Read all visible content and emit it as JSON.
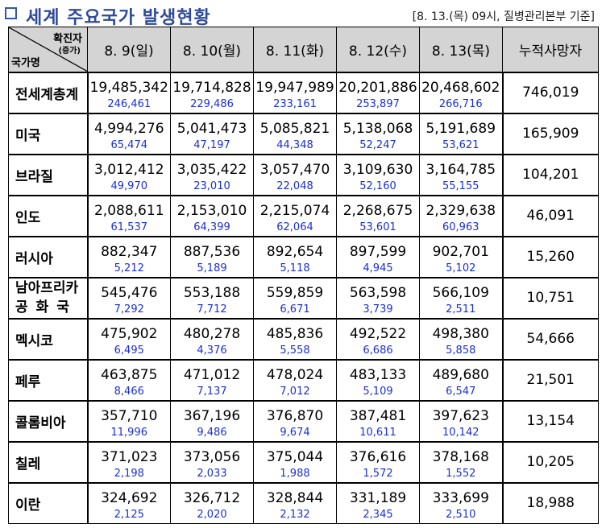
{
  "header": {
    "title": "세계 주요국가 발생현황",
    "note": "[8. 13.(목) 09시, 질병관리본부 기준]",
    "corner_top": "확진자",
    "corner_sub": "(증가)",
    "corner_bottom": "국가명",
    "dates": [
      "8. 9(일)",
      "8. 10(월)",
      "8. 11(화)",
      "8. 12(수)",
      "8. 13(목)"
    ],
    "deaths_label": "누적사망자"
  },
  "rows": [
    {
      "name": "전세계총계",
      "spread": false,
      "cases": [
        "19,485,342",
        "19,714,828",
        "19,947,989",
        "20,201,886",
        "20,468,602"
      ],
      "increase": [
        "246,461",
        "229,486",
        "233,161",
        "253,897",
        "266,716"
      ],
      "deaths": "746,019"
    },
    {
      "name": "미국",
      "spread": true,
      "cases": [
        "4,994,276",
        "5,041,473",
        "5,085,821",
        "5,138,068",
        "5,191,689"
      ],
      "increase": [
        "65,474",
        "47,197",
        "44,348",
        "52,247",
        "53,621"
      ],
      "deaths": "165,909"
    },
    {
      "name": "브라질",
      "spread": true,
      "cases": [
        "3,012,412",
        "3,035,422",
        "3,057,470",
        "3,109,630",
        "3,164,785"
      ],
      "increase": [
        "49,970",
        "23,010",
        "22,048",
        "52,160",
        "55,155"
      ],
      "deaths": "104,201"
    },
    {
      "name": "인도",
      "spread": true,
      "cases": [
        "2,088,611",
        "2,153,010",
        "2,215,074",
        "2,268,675",
        "2,329,638"
      ],
      "increase": [
        "61,537",
        "64,399",
        "62,064",
        "53,601",
        "60,963"
      ],
      "deaths": "46,091"
    },
    {
      "name": "러시아",
      "spread": true,
      "cases": [
        "882,347",
        "887,536",
        "892,654",
        "897,599",
        "902,701"
      ],
      "increase": [
        "5,212",
        "5,189",
        "5,118",
        "4,945",
        "5,102"
      ],
      "deaths": "15,260"
    },
    {
      "name": "남아프리카",
      "name2": "공화국",
      "spread": false,
      "cases": [
        "545,476",
        "553,188",
        "559,859",
        "563,598",
        "566,109"
      ],
      "increase": [
        "7,292",
        "7,712",
        "6,671",
        "3,739",
        "2,511"
      ],
      "deaths": "10,751"
    },
    {
      "name": "멕시코",
      "spread": true,
      "cases": [
        "475,902",
        "480,278",
        "485,836",
        "492,522",
        "498,380"
      ],
      "increase": [
        "6,495",
        "4,376",
        "5,558",
        "6,686",
        "5,858"
      ],
      "deaths": "54,666"
    },
    {
      "name": "페루",
      "spread": true,
      "cases": [
        "463,875",
        "471,012",
        "478,024",
        "483,133",
        "489,680"
      ],
      "increase": [
        "8,466",
        "7,137",
        "7,012",
        "5,109",
        "6,547"
      ],
      "deaths": "21,501"
    },
    {
      "name": "콜롬비아",
      "spread": true,
      "cases": [
        "357,710",
        "367,196",
        "376,870",
        "387,481",
        "397,623"
      ],
      "increase": [
        "11,996",
        "9,486",
        "9,674",
        "10,611",
        "10,142"
      ],
      "deaths": "13,154"
    },
    {
      "name": "칠레",
      "spread": true,
      "cases": [
        "371,023",
        "373,056",
        "375,044",
        "376,616",
        "378,168"
      ],
      "increase": [
        "2,198",
        "2,033",
        "1,988",
        "1,572",
        "1,552"
      ],
      "deaths": "10,205"
    },
    {
      "name": "이란",
      "spread": true,
      "cases": [
        "324,692",
        "326,712",
        "328,844",
        "331,189",
        "333,699"
      ],
      "increase": [
        "2,125",
        "2,020",
        "2,132",
        "2,345",
        "2,510"
      ],
      "deaths": "18,988"
    }
  ]
}
